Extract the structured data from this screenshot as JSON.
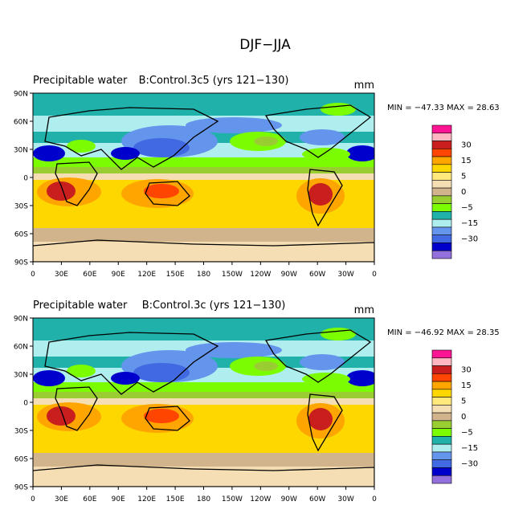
{
  "title": "DJF−JJA",
  "chart_data": [
    {
      "type": "heatmap",
      "title_left": "Precipitable water",
      "title_center": "B:Control.3c5 (yrs 121−130)",
      "units": "mm",
      "stats": "MIN = −47.33 MAX =  28.63",
      "xticks": [
        "0",
        "30E",
        "60E",
        "90E",
        "120E",
        "150E",
        "180",
        "150W",
        "120W",
        "90W",
        "60W",
        "30W",
        "0"
      ],
      "yticks": [
        "90N",
        "60N",
        "30N",
        "0",
        "30S",
        "60S",
        "90S"
      ]
    },
    {
      "type": "heatmap",
      "title_left": "Precipitable water",
      "title_center": "B:Control.3c (yrs 121−130)",
      "units": "mm",
      "stats": "MIN = −46.92 MAX =  28.35",
      "xticks": [
        "0",
        "30E",
        "60E",
        "90E",
        "120E",
        "150E",
        "180",
        "150W",
        "120W",
        "90W",
        "60W",
        "30W",
        "0"
      ],
      "yticks": [
        "90N",
        "60N",
        "30N",
        "0",
        "30S",
        "60S",
        "90S"
      ]
    }
  ],
  "colorbar": {
    "colors": [
      "#ff1493",
      "#ffb6c1",
      "#c81e1e",
      "#ff4500",
      "#ffa500",
      "#ffd700",
      "#ffe87c",
      "#f5deb3",
      "#d2b48c",
      "#9acd32",
      "#7cfc00",
      "#20b2aa",
      "#afeeee",
      "#6495ed",
      "#4169e1",
      "#0000cd",
      "#9370db"
    ],
    "labels": [
      "30",
      "15",
      "5",
      "0",
      "−5",
      "−15",
      "−30"
    ]
  }
}
